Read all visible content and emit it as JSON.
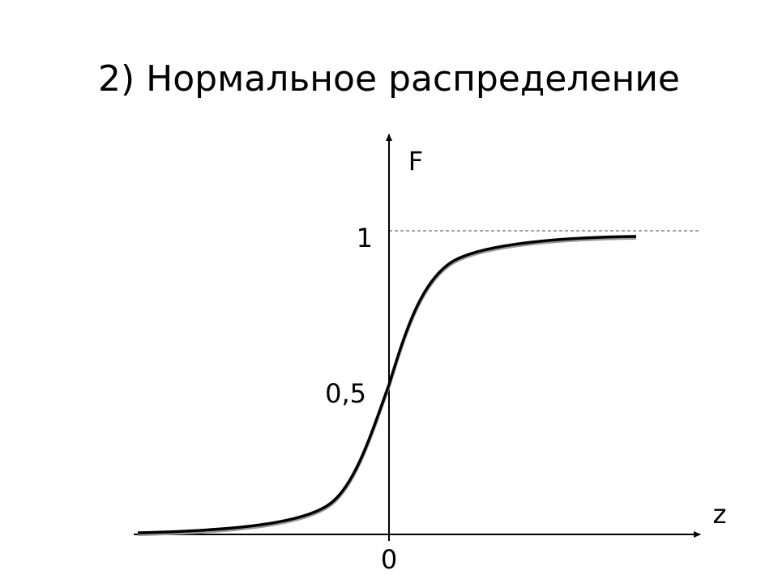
{
  "title": "2) Нормальное распределение",
  "axes": {
    "y_label": "F",
    "x_label": "z"
  },
  "labels": {
    "one": "1",
    "half": "0,5",
    "zero": "0"
  }
}
